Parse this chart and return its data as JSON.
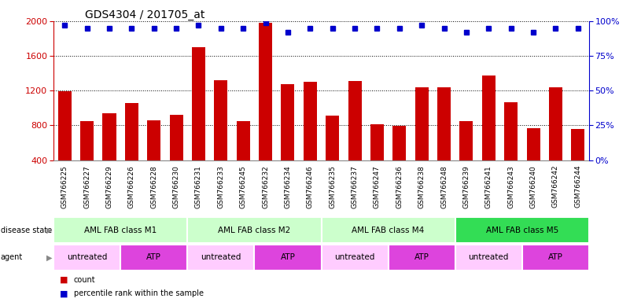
{
  "title": "GDS4304 / 201705_at",
  "samples": [
    "GSM766225",
    "GSM766227",
    "GSM766229",
    "GSM766226",
    "GSM766228",
    "GSM766230",
    "GSM766231",
    "GSM766233",
    "GSM766245",
    "GSM766232",
    "GSM766234",
    "GSM766246",
    "GSM766235",
    "GSM766237",
    "GSM766247",
    "GSM766236",
    "GSM766238",
    "GSM766248",
    "GSM766239",
    "GSM766241",
    "GSM766243",
    "GSM766240",
    "GSM766242",
    "GSM766244"
  ],
  "counts": [
    1190,
    850,
    940,
    1060,
    860,
    920,
    1700,
    1320,
    850,
    1980,
    1270,
    1300,
    910,
    1310,
    810,
    790,
    1240,
    1240,
    850,
    1370,
    1070,
    770,
    1240,
    760
  ],
  "percentiles": [
    97,
    95,
    95,
    95,
    95,
    95,
    97,
    95,
    95,
    99,
    92,
    95,
    95,
    95,
    95,
    95,
    97,
    95,
    92,
    95,
    95,
    92,
    95,
    95
  ],
  "ylim_left": [
    400,
    2000
  ],
  "ylim_right": [
    0,
    100
  ],
  "yticks_left": [
    400,
    800,
    1200,
    1600,
    2000
  ],
  "yticks_right": [
    0,
    25,
    50,
    75,
    100
  ],
  "bar_color": "#cc0000",
  "dot_color": "#0000cc",
  "disease_states": [
    {
      "label": "AML FAB class M1",
      "start": 0,
      "end": 6,
      "color": "#ccffcc"
    },
    {
      "label": "AML FAB class M2",
      "start": 6,
      "end": 12,
      "color": "#ccffcc"
    },
    {
      "label": "AML FAB class M4",
      "start": 12,
      "end": 18,
      "color": "#ccffcc"
    },
    {
      "label": "AML FAB class M5",
      "start": 18,
      "end": 24,
      "color": "#33dd55"
    }
  ],
  "agents": [
    {
      "label": "untreated",
      "start": 0,
      "end": 3,
      "color": "#ffccff"
    },
    {
      "label": "ATP",
      "start": 3,
      "end": 6,
      "color": "#dd44dd"
    },
    {
      "label": "untreated",
      "start": 6,
      "end": 9,
      "color": "#ffccff"
    },
    {
      "label": "ATP",
      "start": 9,
      "end": 12,
      "color": "#dd44dd"
    },
    {
      "label": "untreated",
      "start": 12,
      "end": 15,
      "color": "#ffccff"
    },
    {
      "label": "ATP",
      "start": 15,
      "end": 18,
      "color": "#dd44dd"
    },
    {
      "label": "untreated",
      "start": 18,
      "end": 21,
      "color": "#ffccff"
    },
    {
      "label": "ATP",
      "start": 21,
      "end": 24,
      "color": "#dd44dd"
    }
  ],
  "legend_count_color": "#cc0000",
  "legend_dot_color": "#0000cc",
  "bg_color": "#ffffff"
}
